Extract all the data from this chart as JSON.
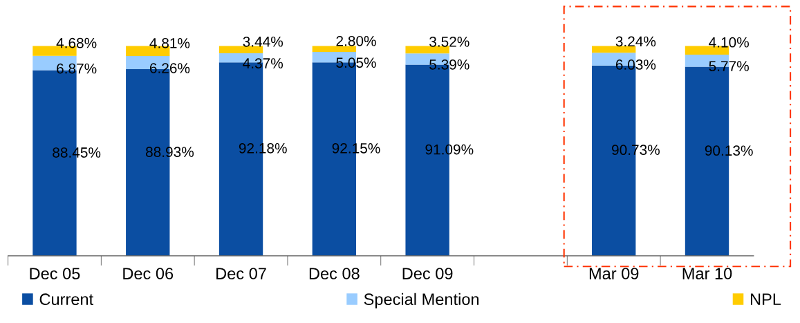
{
  "chart_data": {
    "type": "bar",
    "stacked": true,
    "categories": [
      "Dec 05",
      "Dec 06",
      "Dec 07",
      "Dec 08",
      "Dec 09",
      null,
      "Mar 09",
      "Mar 10"
    ],
    "series": [
      {
        "name": "Current",
        "color": "#0b4ea2",
        "values": [
          88.45,
          88.93,
          92.18,
          92.15,
          91.09,
          null,
          90.73,
          90.13
        ],
        "value_labels": [
          "88.45%",
          "88.93%",
          "92.18%",
          "92.15%",
          "91.09%",
          null,
          "90.73%",
          "90.13%"
        ]
      },
      {
        "name": "Special Mention",
        "color": "#99ccff",
        "values": [
          6.87,
          6.26,
          4.37,
          5.05,
          5.39,
          null,
          6.03,
          5.77
        ],
        "value_labels": [
          "6.87%",
          "6.26%",
          "4.37%",
          "5.05%",
          "5.39%",
          null,
          "6.03%",
          "5.77%"
        ]
      },
      {
        "name": "NPL",
        "color": "#ffcc00",
        "values": [
          4.68,
          4.81,
          3.44,
          2.8,
          3.52,
          null,
          3.24,
          4.1
        ],
        "value_labels": [
          "4.68%",
          "4.81%",
          "3.44%",
          "2.80%",
          "3.52%",
          null,
          "3.24%",
          "4.10%"
        ]
      }
    ],
    "legend": "bottom",
    "grid": false
  }
}
